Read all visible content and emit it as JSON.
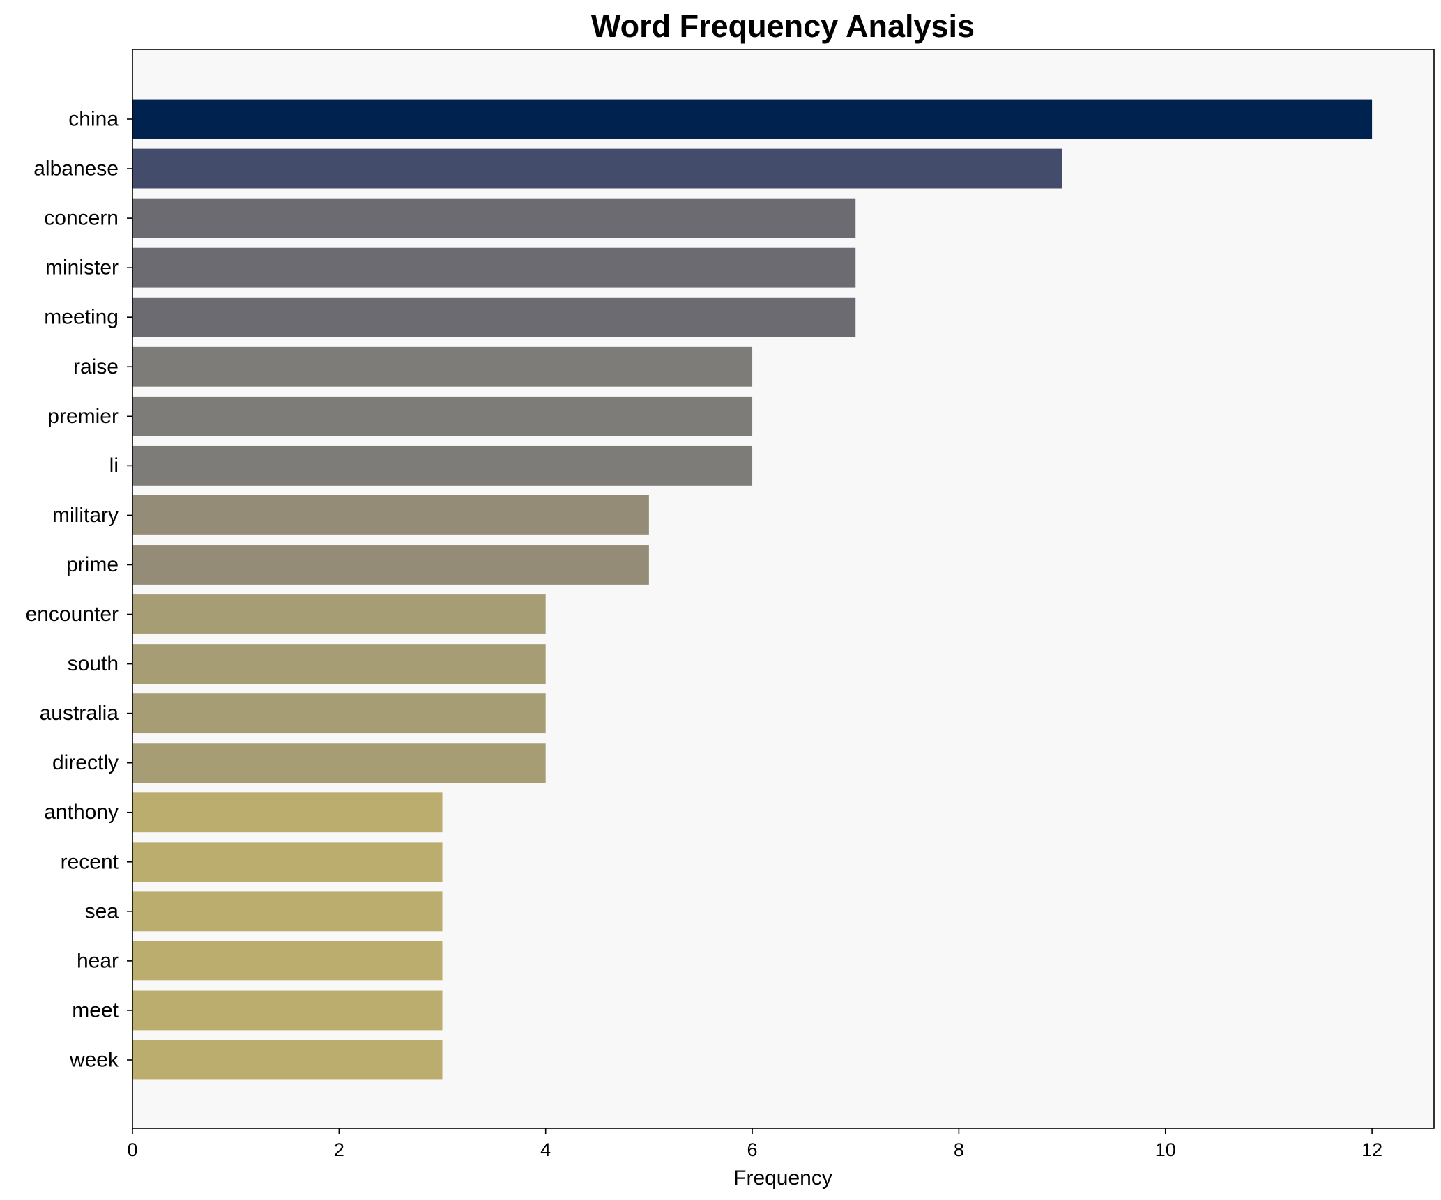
{
  "chart_data": {
    "type": "bar",
    "orientation": "horizontal",
    "title": "Word Frequency Analysis",
    "xlabel": "Frequency",
    "ylabel": "",
    "xlim": [
      0,
      12.6
    ],
    "xticks": [
      0,
      2,
      4,
      6,
      8,
      10,
      12
    ],
    "grid": false,
    "legend": "none",
    "background": "#f8f8f8",
    "categories": [
      "china",
      "albanese",
      "concern",
      "minister",
      "meeting",
      "raise",
      "premier",
      "li",
      "military",
      "prime",
      "encounter",
      "south",
      "australia",
      "directly",
      "anthony",
      "recent",
      "sea",
      "hear",
      "meet",
      "week"
    ],
    "values": [
      12,
      9,
      7,
      7,
      7,
      6,
      6,
      6,
      5,
      5,
      4,
      4,
      4,
      4,
      3,
      3,
      3,
      3,
      3,
      3
    ],
    "colors": [
      "#00224e",
      "#434d6b",
      "#6b6b71",
      "#6b6b71",
      "#6b6b71",
      "#7d7c78",
      "#7d7c78",
      "#7d7c78",
      "#948c77",
      "#948c77",
      "#a69d75",
      "#a69d75",
      "#a69d75",
      "#a69d75",
      "#baad6e",
      "#baad6e",
      "#baad6e",
      "#baad6e",
      "#baad6e",
      "#baad6e"
    ]
  }
}
